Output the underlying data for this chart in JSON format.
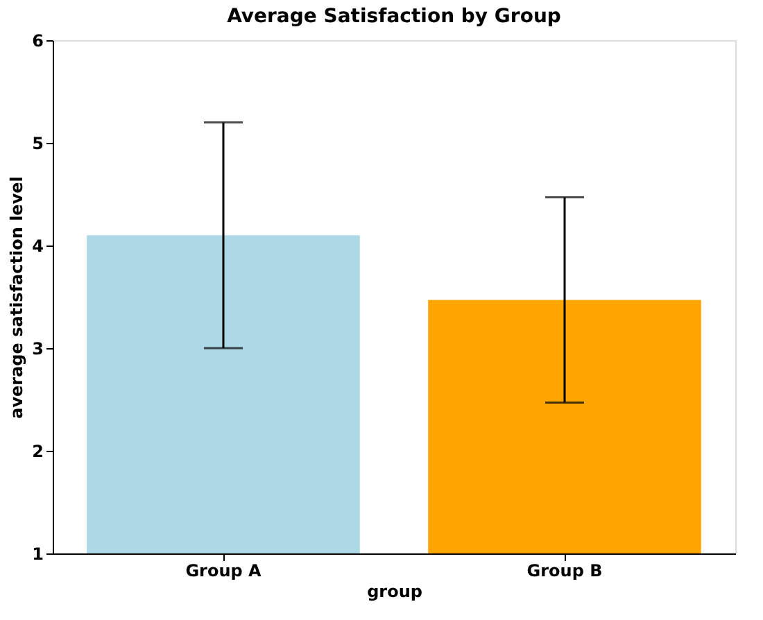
{
  "chart_data": {
    "type": "bar",
    "title": "Average Satisfaction by Group",
    "xlabel": "group",
    "ylabel": "average satisfaction level",
    "categories": [
      "Group A",
      "Group B"
    ],
    "values": [
      4.1,
      3.47
    ],
    "colors": [
      "#add8e6",
      "#ffa500"
    ],
    "errors": [
      1.1,
      1.0
    ],
    "ylim": [
      1,
      6
    ],
    "yticks": [
      1,
      2,
      3,
      4,
      5,
      6
    ],
    "grid": false,
    "legend": false
  }
}
